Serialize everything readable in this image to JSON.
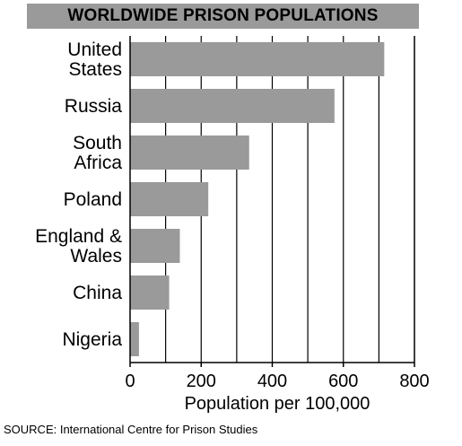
{
  "chart_data": {
    "type": "bar",
    "orientation": "horizontal",
    "title": "WORLDWIDE PRISON POPULATIONS",
    "categories": [
      "United States",
      "Russia",
      "South Africa",
      "Poland",
      "England & Wales",
      "China",
      "Nigeria"
    ],
    "category_lines": [
      [
        "United",
        "States"
      ],
      [
        "Russia"
      ],
      [
        "South",
        "Africa"
      ],
      [
        "Poland"
      ],
      [
        "England &",
        "Wales"
      ],
      [
        "China"
      ],
      [
        "Nigeria"
      ]
    ],
    "values": [
      715,
      575,
      335,
      220,
      140,
      110,
      25
    ],
    "xlabel": "Population per 100,000",
    "ylabel": "",
    "xlim": [
      0,
      800
    ],
    "xticks": [
      0,
      200,
      400,
      600,
      800
    ],
    "grid": true,
    "bar_color": "#9a9a9a",
    "title_background": "#9a9a9a",
    "source": "SOURCE: International Centre for Prison Studies"
  }
}
